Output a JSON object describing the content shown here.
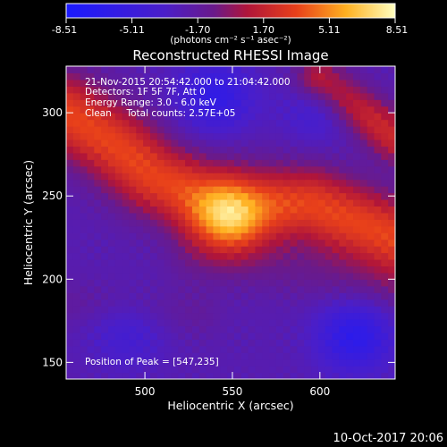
{
  "chart_data": {
    "type": "heatmap",
    "title": "Reconstructed RHESSI Image",
    "xlabel": "Heliocentric X (arcsec)",
    "ylabel": "Heliocentric Y (arcsec)",
    "xlim": [
      455,
      643
    ],
    "ylim": [
      140,
      328
    ],
    "x_ticks": [
      500,
      550,
      600
    ],
    "y_ticks": [
      150,
      200,
      250,
      300
    ],
    "colorbar": {
      "ticks": [
        "-8.51",
        "-5.11",
        "-1.70",
        "1.70",
        "5.11",
        "8.51"
      ],
      "unit_label": "(photons cm⁻² s⁻¹ asec⁻²)",
      "range": [
        -8.51,
        8.51
      ],
      "colormap": [
        {
          "pos": 0.0,
          "color": "#1a1aff"
        },
        {
          "pos": 0.3,
          "color": "#4b1ec8"
        },
        {
          "pos": 0.45,
          "color": "#6a1a8a"
        },
        {
          "pos": 0.55,
          "color": "#b0153a"
        },
        {
          "pos": 0.7,
          "color": "#e8401a"
        },
        {
          "pos": 0.85,
          "color": "#ffb020"
        },
        {
          "pos": 1.0,
          "color": "#ffffc0"
        }
      ]
    },
    "annotations": [
      "21-Nov-2015 20:54:42.000 to 21:04:42.000",
      "Detectors: 1F 5F 7F, Att 0",
      "Energy Range: 3.0 - 6.0 keV",
      "Clean     Total counts: 2.57E+05"
    ],
    "peak_label": "Position of Peak = [547,235]",
    "peak": {
      "x": 547,
      "y": 235,
      "value": 8.51
    },
    "ridges": [
      {
        "points": [
          [
            455,
            300
          ],
          [
            480,
            283
          ],
          [
            505,
            262
          ],
          [
            530,
            250
          ],
          [
            560,
            245
          ],
          [
            595,
            245
          ],
          [
            643,
            225
          ]
        ],
        "value": 3.4,
        "width_arcsec": 16
      },
      {
        "points": [
          [
            530,
            212
          ],
          [
            575,
            208
          ],
          [
            615,
            198
          ],
          [
            643,
            192
          ]
        ],
        "value": -1.3,
        "width_arcsec": 12
      },
      {
        "points": [
          [
            455,
            186
          ],
          [
            490,
            184
          ],
          [
            530,
            179
          ]
        ],
        "value": -1.6,
        "width_arcsec": 10
      },
      {
        "points": [
          [
            600,
            320
          ],
          [
            625,
            300
          ],
          [
            643,
            285
          ]
        ],
        "value": 2.0,
        "width_arcsec": 10
      }
    ],
    "background_value": -2.4,
    "minima": [
      {
        "x": 540,
        "y": 310,
        "value": -6.0
      },
      {
        "x": 600,
        "y": 303,
        "value": -4.5
      },
      {
        "x": 620,
        "y": 166,
        "value": -6.5
      },
      {
        "x": 490,
        "y": 168,
        "value": -4.2
      }
    ]
  },
  "timestamp": "10-Oct-2017 20:06"
}
